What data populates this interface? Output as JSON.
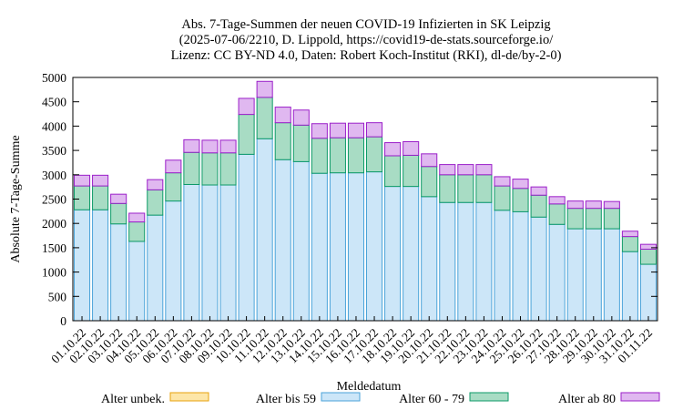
{
  "chart_data": {
    "type": "bar",
    "stacked": true,
    "title_lines": [
      "Abs. 7-Tage-Summen der neuen COVID-19 Infizierten in SK Leipzig",
      "(2025-07-06/2210, D. Lippold, https://covid19-de-stats.sourceforge.io/",
      "Lizenz: CC BY-ND 4.0, Daten: Robert Koch-Institut (RKI), dl-de/by-2-0)"
    ],
    "xlabel": "Meldedatum",
    "ylabel": "Absolute 7-Tage-Summe",
    "ylim": [
      0,
      5000
    ],
    "yticks": [
      0,
      500,
      1000,
      1500,
      2000,
      2500,
      3000,
      3500,
      4000,
      4500,
      5000
    ],
    "grid": false,
    "legend_position": "bottom",
    "categories": [
      "01.10.22",
      "02.10.22",
      "03.10.22",
      "04.10.22",
      "05.10.22",
      "06.10.22",
      "07.10.22",
      "08.10.22",
      "09.10.22",
      "10.10.22",
      "11.10.22",
      "12.10.22",
      "13.10.22",
      "14.10.22",
      "15.10.22",
      "16.10.22",
      "17.10.22",
      "18.10.22",
      "19.10.22",
      "20.10.22",
      "21.10.22",
      "22.10.22",
      "23.10.22",
      "24.10.22",
      "25.10.22",
      "26.10.22",
      "27.10.22",
      "28.10.22",
      "29.10.22",
      "30.10.22",
      "31.10.22",
      "01.11.22"
    ],
    "series": [
      {
        "name": "Alter unbek.",
        "fill": "#fde6a8",
        "stroke": "#e8a30c",
        "values": [
          0,
          0,
          0,
          0,
          0,
          0,
          0,
          0,
          0,
          0,
          0,
          0,
          0,
          0,
          0,
          0,
          0,
          0,
          0,
          0,
          0,
          0,
          0,
          0,
          0,
          0,
          0,
          0,
          0,
          0,
          0,
          0
        ]
      },
      {
        "name": "Alter bis 59",
        "fill": "#cce6f8",
        "stroke": "#4aa3d9",
        "values": [
          2280,
          2280,
          1990,
          1630,
          2170,
          2460,
          2800,
          2790,
          2790,
          3420,
          3740,
          3310,
          3270,
          3030,
          3040,
          3040,
          3060,
          2760,
          2760,
          2550,
          2430,
          2430,
          2430,
          2270,
          2240,
          2130,
          1980,
          1890,
          1890,
          1890,
          1420,
          1160
        ]
      },
      {
        "name": "Alter 60 - 79",
        "fill": "#a8dcc4",
        "stroke": "#0c9a67",
        "values": [
          490,
          490,
          420,
          400,
          520,
          580,
          660,
          660,
          660,
          820,
          850,
          760,
          750,
          720,
          720,
          720,
          720,
          630,
          640,
          620,
          570,
          570,
          570,
          500,
          480,
          450,
          420,
          420,
          420,
          420,
          310,
          310
        ]
      },
      {
        "name": "Alter ab 80",
        "fill": "#e0b8f0",
        "stroke": "#9b1fc9",
        "values": [
          220,
          220,
          190,
          180,
          210,
          260,
          260,
          260,
          260,
          330,
          330,
          320,
          310,
          300,
          300,
          300,
          290,
          270,
          280,
          260,
          210,
          210,
          210,
          190,
          190,
          170,
          150,
          150,
          150,
          140,
          110,
          100
        ]
      }
    ]
  }
}
